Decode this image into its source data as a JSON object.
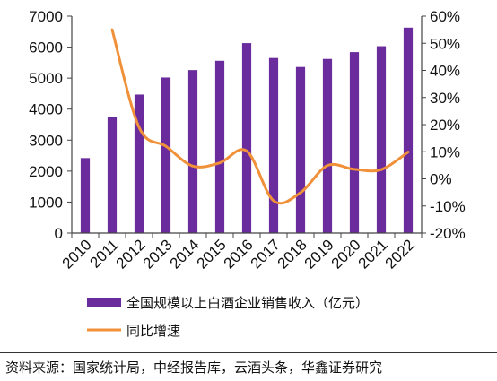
{
  "colors": {
    "bar": "#6a2c9c",
    "line": "#f0913a",
    "axis": "#444444",
    "text": "#111111"
  },
  "chart_data": {
    "type": "bar",
    "categories": [
      "2010",
      "2011",
      "2012",
      "2013",
      "2014",
      "2015",
      "2016",
      "2017",
      "2018",
      "2019",
      "2020",
      "2021",
      "2022"
    ],
    "series": [
      {
        "name": "全国规模以上白酒企业销售收入（亿元）",
        "type": "bar",
        "axis": "left",
        "values": [
          2420,
          3750,
          4470,
          5020,
          5260,
          5560,
          6130,
          5650,
          5360,
          5620,
          5840,
          6030,
          6630
        ]
      },
      {
        "name": "同比增速",
        "type": "line",
        "axis": "right",
        "unit": "%",
        "values": [
          null,
          55,
          19,
          12,
          4.7,
          5.9,
          10.3,
          -8.1,
          -5.1,
          4.9,
          3.5,
          3.4,
          9.9
        ]
      }
    ],
    "y_left": {
      "ylim": [
        0,
        7000
      ],
      "ticks": [
        0,
        1000,
        2000,
        3000,
        4000,
        5000,
        6000,
        7000
      ]
    },
    "y_right": {
      "ylim": [
        -20,
        60
      ],
      "ticks": [
        -20,
        -10,
        0,
        10,
        20,
        30,
        40,
        50,
        60
      ],
      "tick_labels": [
        "-20%",
        "-10%",
        "0%",
        "10%",
        "20%",
        "30%",
        "40%",
        "50%",
        "60%"
      ]
    },
    "legend_position": "bottom",
    "grid": false
  },
  "source": "资料来源：国家统计局，中经报告库，云酒头条，华鑫证券研究"
}
